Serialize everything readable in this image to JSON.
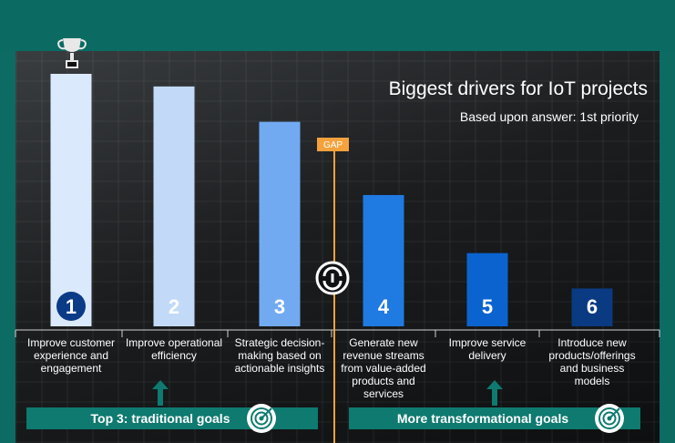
{
  "chart_data": {
    "type": "bar",
    "title": "Biggest drivers for IoT projects",
    "subtitle": "Based upon answer: 1st priority",
    "categories": [
      "Improve customer experience and engagement",
      "Improve operational efficiency",
      "Strategic decision-making based on actionable insights",
      "Generate new revenue streams from value-added products and services",
      "Improve service delivery",
      "Introduce new products/offerings and business models"
    ],
    "ranks": [
      "1",
      "2",
      "3",
      "4",
      "5",
      "6"
    ],
    "values": [
      100,
      95,
      81,
      52,
      29,
      15
    ],
    "bar_colors": [
      "#dbe9fc",
      "#c2daf8",
      "#72aaf2",
      "#1f7ae2",
      "#0b63cf",
      "#0a3a82"
    ],
    "ylim": [
      0,
      100
    ],
    "gap_label": "GAP",
    "goals": {
      "left": "Top 3: traditional goals",
      "right": "More transformational goals"
    }
  },
  "icons": {
    "trophy": "trophy-icon",
    "gap_logo": "gap-logo-icon",
    "target_left": "target-icon",
    "target_right": "target-icon",
    "arrow": "up-arrow-icon"
  }
}
